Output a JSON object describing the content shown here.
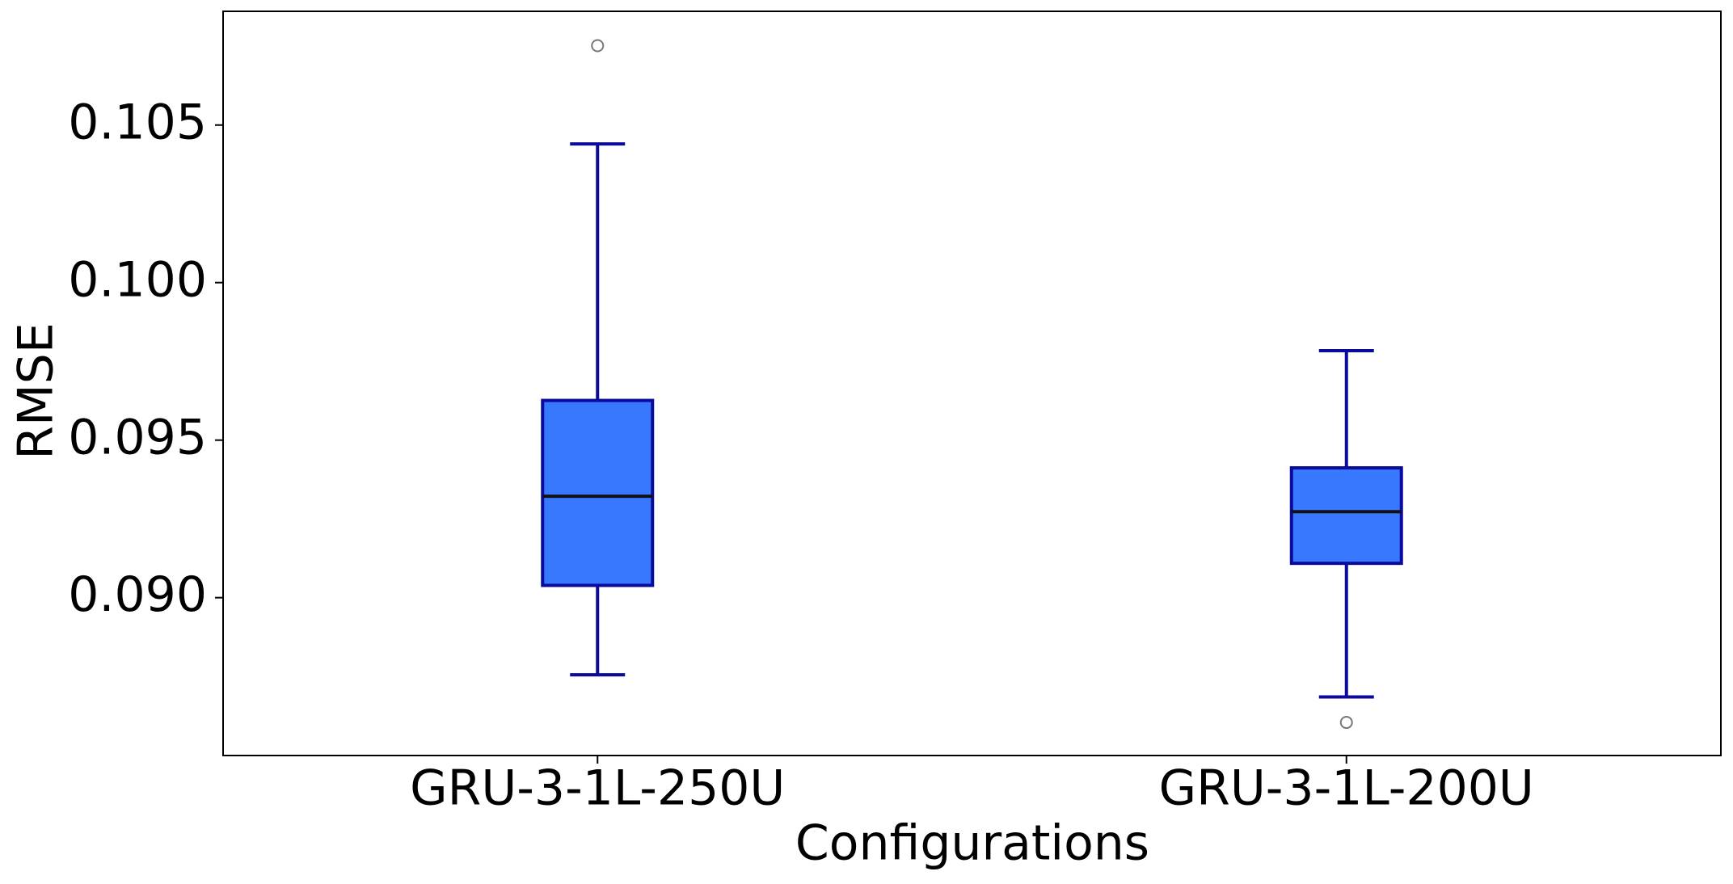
{
  "chart_data": {
    "type": "box",
    "x_label": "Configurations",
    "y_label": "RMSE",
    "categories": [
      "GRU-3-1L-250U",
      "GRU-3-1L-200U"
    ],
    "boxes": [
      {
        "whisker_low": 0.08755,
        "q1": 0.09039,
        "median": 0.09322,
        "q3": 0.09626,
        "whisker_high": 0.1044,
        "outliers": [
          0.10752
        ]
      },
      {
        "whisker_low": 0.08685,
        "q1": 0.09109,
        "median": 0.09273,
        "q3": 0.09412,
        "whisker_high": 0.09784,
        "outliers": [
          0.08604
        ]
      }
    ],
    "box_color": "#3778ff",
    "edge_color": "#0a0a9c",
    "median_color": "#111111",
    "outlier_color": "#777777",
    "ylim": [
      0.08499,
      0.10861
    ],
    "yticks": [
      {
        "value": 0.09,
        "label": "0.090"
      },
      0.095,
      {
        "value": 0.1,
        "label": "0.100"
      },
      0.105
    ],
    "grid": false
  }
}
